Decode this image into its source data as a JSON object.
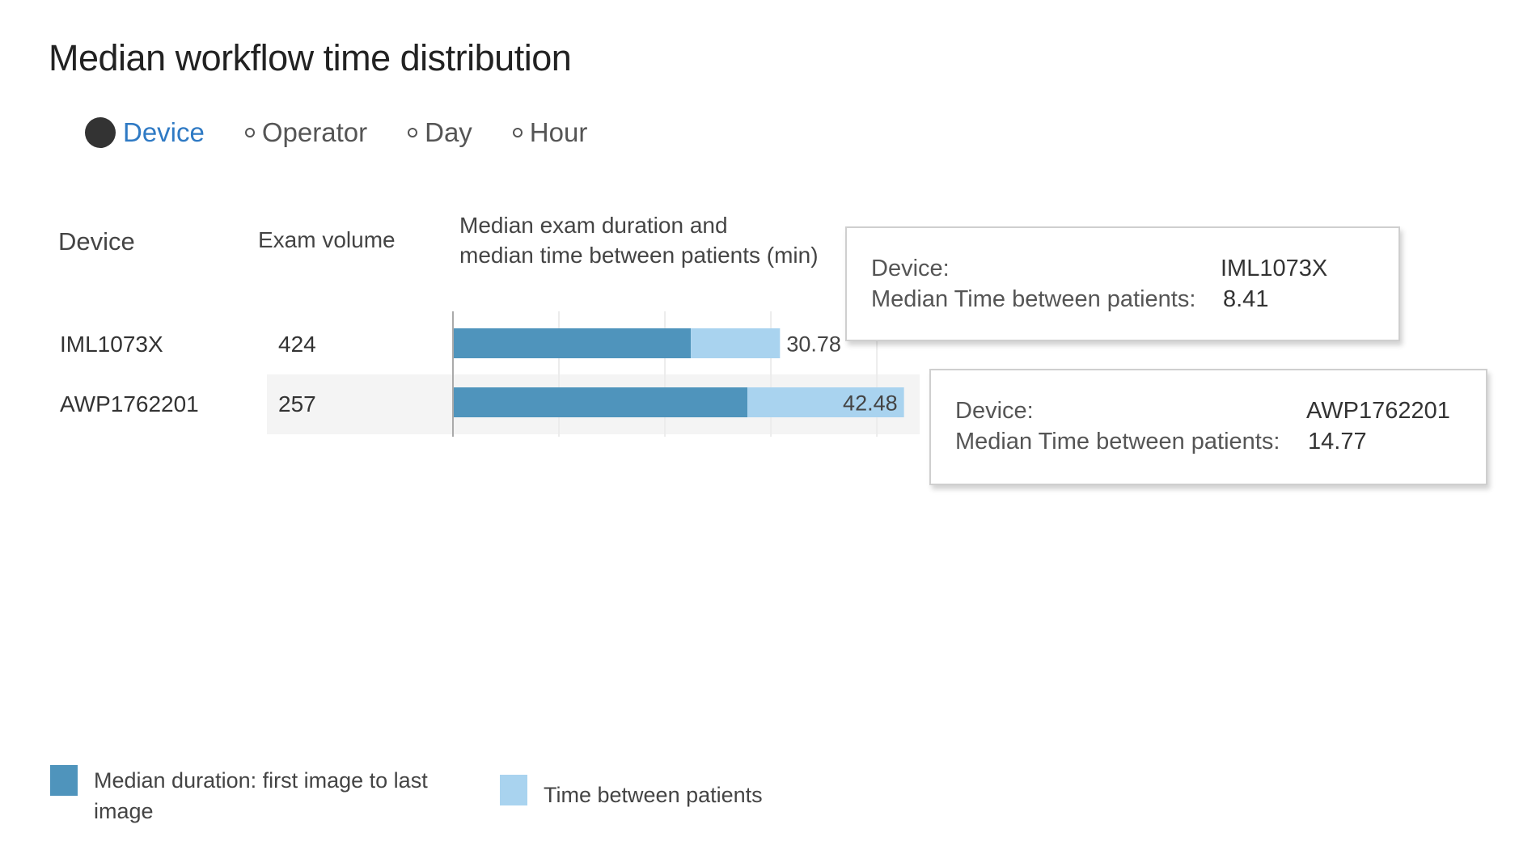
{
  "title": "Median workflow time distribution",
  "group_by": {
    "options": [
      {
        "label": "Device",
        "selected": true
      },
      {
        "label": "Operator",
        "selected": false
      },
      {
        "label": "Day",
        "selected": false
      },
      {
        "label": "Hour",
        "selected": false
      }
    ]
  },
  "table": {
    "headers": {
      "device": "Device",
      "volume": "Exam volume",
      "median_line1": "Median exam duration and",
      "median_line2": "median time between patients (min)"
    },
    "rows": [
      {
        "device": "IML1073X",
        "volume": "424",
        "total_label": "30.78"
      },
      {
        "device": "AWP1762201",
        "volume": "257",
        "total_label": "42.48"
      }
    ]
  },
  "tooltips": [
    {
      "device_label": "Device:",
      "device_value": "IML1073X",
      "metric_label": "Median Time between patients:",
      "metric_value": "8.41"
    },
    {
      "device_label": "Device:",
      "device_value": "AWP1762201",
      "metric_label": "Median Time between patients:",
      "metric_value": "14.77"
    }
  ],
  "legend": {
    "duration_line1": "Median duration: first image to last",
    "duration_line2": "image",
    "between": "Time between patients"
  },
  "colors": {
    "duration": "#4f94bc",
    "between": "#a9d3ef",
    "accent": "#2f7ac4"
  },
  "chart_data": {
    "type": "bar",
    "stacked": true,
    "orientation": "horizontal",
    "categories": [
      "IML1073X",
      "AWP1762201"
    ],
    "series": [
      {
        "name": "Median duration: first image to last image",
        "values": [
          22.37,
          27.71
        ]
      },
      {
        "name": "Time between patients",
        "values": [
          8.41,
          14.77
        ]
      }
    ],
    "totals": [
      30.78,
      42.48
    ],
    "xlim": [
      0,
      43.5
    ],
    "grid": true
  }
}
